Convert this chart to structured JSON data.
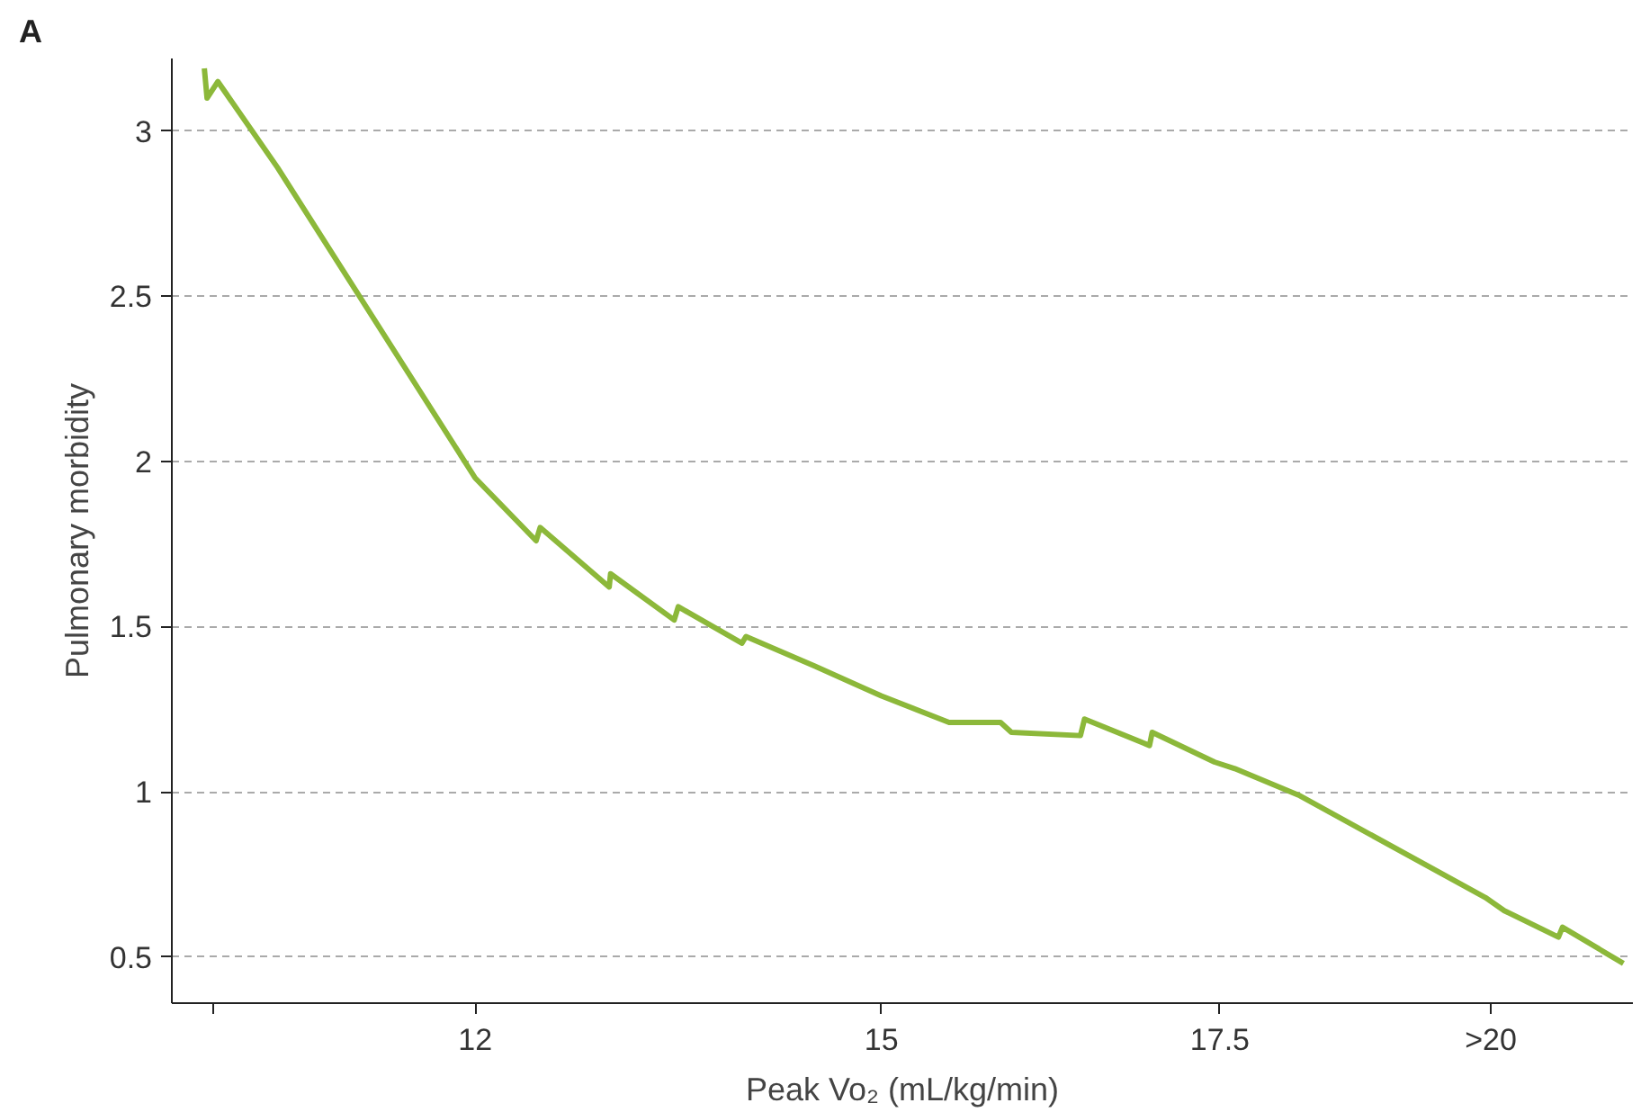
{
  "chart_data": {
    "type": "line",
    "xlabel": "Peak Vo₂ (mL/kg/min)",
    "ylabel": "Pulmonary morbidity",
    "annotations": [
      "A"
    ],
    "xlim": [
      9.76,
      20.55
    ],
    "xticks": [
      {
        "value": 10.07,
        "label": null
      },
      12,
      15,
      17.5,
      {
        "value": 19.5,
        "label": ">20"
      }
    ],
    "ylim": [
      0.36,
      3.22
    ],
    "yticks": [
      0.5,
      1,
      1.5,
      2,
      2.5,
      3
    ],
    "grid": "y",
    "marker": "none",
    "line_style": "solid",
    "series": [
      {
        "color": "#8cb83a",
        "x": [
          10.0,
          10.02,
          10.1,
          10.54,
          12.0,
          12.45,
          12.48,
          12.99,
          13.0,
          13.47,
          13.5,
          13.97,
          14.0,
          14.51,
          15.0,
          15.5,
          15.88,
          15.96,
          16.47,
          16.5,
          16.98,
          17.0,
          17.46,
          17.61,
          18.08,
          19.46,
          19.6,
          20.0,
          20.03,
          20.48
        ],
        "values": [
          3.19,
          3.1,
          3.15,
          2.89,
          1.95,
          1.76,
          1.8,
          1.62,
          1.66,
          1.52,
          1.56,
          1.45,
          1.47,
          1.38,
          1.29,
          1.21,
          1.21,
          1.18,
          1.17,
          1.22,
          1.14,
          1.18,
          1.09,
          1.07,
          0.99,
          0.68,
          0.64,
          0.56,
          0.59,
          0.48
        ]
      }
    ]
  }
}
